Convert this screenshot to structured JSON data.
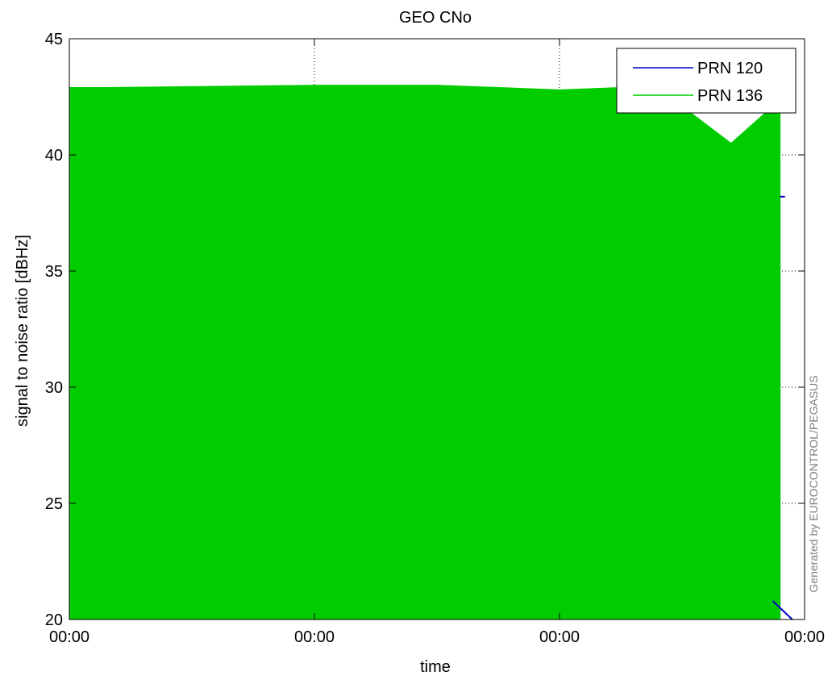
{
  "chart_data": {
    "type": "line",
    "title": "GEO CNo",
    "xlabel": "time",
    "ylabel": "signal to noise ratio [dBHz]",
    "ylim": [
      20,
      45
    ],
    "yticks": [
      20,
      25,
      30,
      35,
      40,
      45
    ],
    "xticks": [
      "00:00",
      "00:00",
      "00:00",
      "00:00"
    ],
    "xlim": [
      0,
      3
    ],
    "grid": true,
    "legend_position": "top-right",
    "series": [
      {
        "name": "PRN 120",
        "color": "#0000cc",
        "fill_band": {
          "x": [
            0.0,
            2.5,
            2.58,
            2.85,
            2.9
          ],
          "low": [
            20,
            20,
            20,
            20,
            20
          ],
          "high": [
            38.3,
            38.3,
            38.4,
            38.3,
            38.0
          ]
        }
      },
      {
        "name": "PRN 136",
        "color": "#00cc00",
        "fill_band": {
          "x": [
            0.0,
            0.15,
            1.0,
            1.5,
            2.0,
            2.25,
            2.4,
            2.7,
            2.86,
            2.9
          ],
          "low": [
            20,
            20,
            20,
            20,
            20,
            20,
            20,
            20,
            20,
            20
          ],
          "high": [
            42.9,
            42.9,
            43.0,
            43.0,
            42.8,
            42.9,
            42.9,
            40.5,
            42.0,
            42.0
          ]
        }
      }
    ]
  },
  "watermark": "Generated by EUROCONTROL/PEGASUS"
}
